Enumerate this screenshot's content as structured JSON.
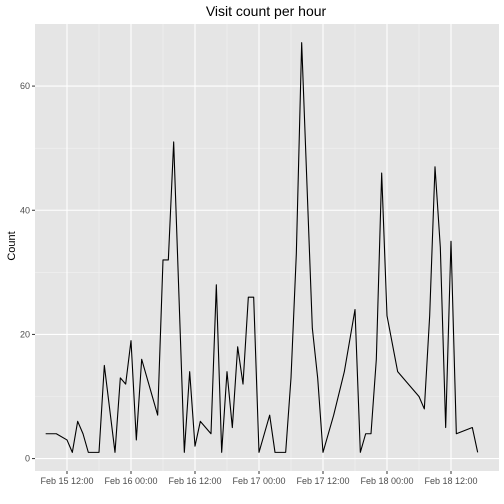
{
  "chart_data": {
    "type": "line",
    "title": "Visit count per hour",
    "xlabel": "",
    "ylabel": "Count",
    "ylim": [
      -2,
      70
    ],
    "xlim": [
      "2022-02-15 06:00",
      "2022-02-18 21:00"
    ],
    "y_ticks": [
      0,
      20,
      40,
      60
    ],
    "x_ticks": [
      {
        "value": "2022-02-15 12:00",
        "label": "Feb 15 12:00"
      },
      {
        "value": "2022-02-16 00:00",
        "label": "Feb 16 00:00"
      },
      {
        "value": "2022-02-16 12:00",
        "label": "Feb 16 12:00"
      },
      {
        "value": "2022-02-17 00:00",
        "label": "Feb 17 00:00"
      },
      {
        "value": "2022-02-17 12:00",
        "label": "Feb 17 12:00"
      },
      {
        "value": "2022-02-18 00:00",
        "label": "Feb 18 00:00"
      },
      {
        "value": "2022-02-18 12:00",
        "label": "Feb 18 12:00"
      }
    ],
    "grid": true,
    "background": "#e5e5e5",
    "line_color": "#000000",
    "series": [
      {
        "points": [
          [
            "2022-02-15 08:00",
            4
          ],
          [
            "2022-02-15 10:00",
            4
          ],
          [
            "2022-02-15 12:00",
            3
          ],
          [
            "2022-02-15 13:00",
            1
          ],
          [
            "2022-02-15 14:00",
            6
          ],
          [
            "2022-02-15 15:00",
            4
          ],
          [
            "2022-02-15 16:00",
            1
          ],
          [
            "2022-02-15 18:00",
            1
          ],
          [
            "2022-02-15 19:00",
            15
          ],
          [
            "2022-02-15 21:00",
            1
          ],
          [
            "2022-02-15 22:00",
            13
          ],
          [
            "2022-02-15 23:00",
            12
          ],
          [
            "2022-02-16 00:00",
            19
          ],
          [
            "2022-02-16 01:00",
            3
          ],
          [
            "2022-02-16 02:00",
            16
          ],
          [
            "2022-02-16 05:00",
            7
          ],
          [
            "2022-02-16 06:00",
            32
          ],
          [
            "2022-02-16 07:00",
            32
          ],
          [
            "2022-02-16 08:00",
            51
          ],
          [
            "2022-02-16 09:00",
            26
          ],
          [
            "2022-02-16 10:00",
            1
          ],
          [
            "2022-02-16 11:00",
            14
          ],
          [
            "2022-02-16 12:00",
            2
          ],
          [
            "2022-02-16 13:00",
            6
          ],
          [
            "2022-02-16 15:00",
            4
          ],
          [
            "2022-02-16 16:00",
            28
          ],
          [
            "2022-02-16 17:00",
            1
          ],
          [
            "2022-02-16 18:00",
            14
          ],
          [
            "2022-02-16 19:00",
            5
          ],
          [
            "2022-02-16 20:00",
            18
          ],
          [
            "2022-02-16 21:00",
            12
          ],
          [
            "2022-02-16 22:00",
            26
          ],
          [
            "2022-02-16 23:00",
            26
          ],
          [
            "2022-02-17 00:00",
            1
          ],
          [
            "2022-02-17 02:00",
            7
          ],
          [
            "2022-02-17 03:00",
            1
          ],
          [
            "2022-02-17 05:00",
            1
          ],
          [
            "2022-02-17 06:00",
            13
          ],
          [
            "2022-02-17 07:00",
            33
          ],
          [
            "2022-02-17 08:00",
            67
          ],
          [
            "2022-02-17 10:00",
            21
          ],
          [
            "2022-02-17 11:00",
            13
          ],
          [
            "2022-02-17 12:00",
            1
          ],
          [
            "2022-02-17 14:00",
            7
          ],
          [
            "2022-02-17 16:00",
            14
          ],
          [
            "2022-02-17 18:00",
            24
          ],
          [
            "2022-02-17 19:00",
            1
          ],
          [
            "2022-02-17 20:00",
            4
          ],
          [
            "2022-02-17 21:00",
            4
          ],
          [
            "2022-02-17 22:00",
            16
          ],
          [
            "2022-02-17 23:00",
            46
          ],
          [
            "2022-02-18 00:00",
            23
          ],
          [
            "2022-02-18 02:00",
            14
          ],
          [
            "2022-02-18 06:00",
            10
          ],
          [
            "2022-02-18 07:00",
            8
          ],
          [
            "2022-02-18 08:00",
            23
          ],
          [
            "2022-02-18 09:00",
            47
          ],
          [
            "2022-02-18 10:00",
            34
          ],
          [
            "2022-02-18 11:00",
            5
          ],
          [
            "2022-02-18 12:00",
            35
          ],
          [
            "2022-02-18 13:00",
            4
          ],
          [
            "2022-02-18 16:00",
            5
          ],
          [
            "2022-02-18 17:00",
            1
          ]
        ]
      }
    ]
  }
}
